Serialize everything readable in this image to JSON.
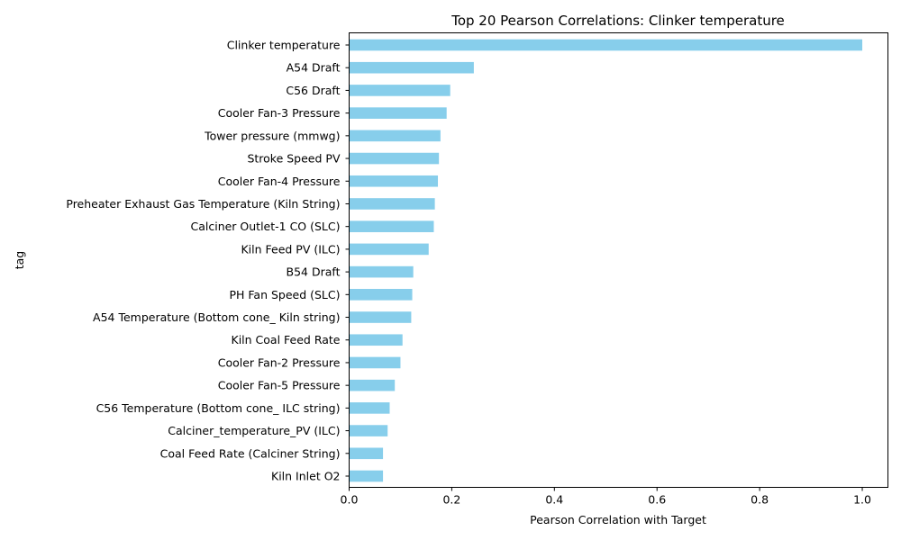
{
  "chart_data": {
    "type": "bar",
    "orientation": "horizontal",
    "title": "Top 20 Pearson Correlations: Clinker temperature",
    "xlabel": "Pearson Correlation with Target",
    "ylabel": "tag",
    "xlim": [
      0,
      1.05
    ],
    "xticks": [
      0.0,
      0.2,
      0.4,
      0.6,
      0.8,
      1.0
    ],
    "xtick_labels": [
      "0.0",
      "0.2",
      "0.4",
      "0.6",
      "0.8",
      "1.0"
    ],
    "grid": false,
    "bar_color": "#87ceeb",
    "categories": [
      "Clinker temperature",
      "A54 Draft",
      "C56 Draft",
      "Cooler Fan-3 Pressure",
      "Tower pressure (mmwg)",
      "Stroke Speed PV",
      "Cooler Fan-4 Pressure",
      "Preheater Exhaust Gas Temperature  (Kiln String)",
      "Calciner Outlet-1 CO (SLC)",
      "Kiln Feed PV (ILC)",
      "B54 Draft",
      "PH Fan Speed (SLC)",
      "A54 Temperature (Bottom cone_ Kiln string)",
      "Kiln Coal Feed Rate",
      "Cooler Fan-2 Pressure",
      "Cooler Fan-5 Pressure",
      "C56 Temperature (Bottom cone_ ILC string)",
      "Calciner_temperature_PV (ILC)",
      "Coal Feed Rate (Calciner String)",
      "Kiln Inlet O2"
    ],
    "values": [
      1.0,
      0.243,
      0.197,
      0.19,
      0.178,
      0.175,
      0.173,
      0.167,
      0.165,
      0.155,
      0.125,
      0.123,
      0.121,
      0.104,
      0.1,
      0.089,
      0.079,
      0.075,
      0.066,
      0.066
    ]
  }
}
